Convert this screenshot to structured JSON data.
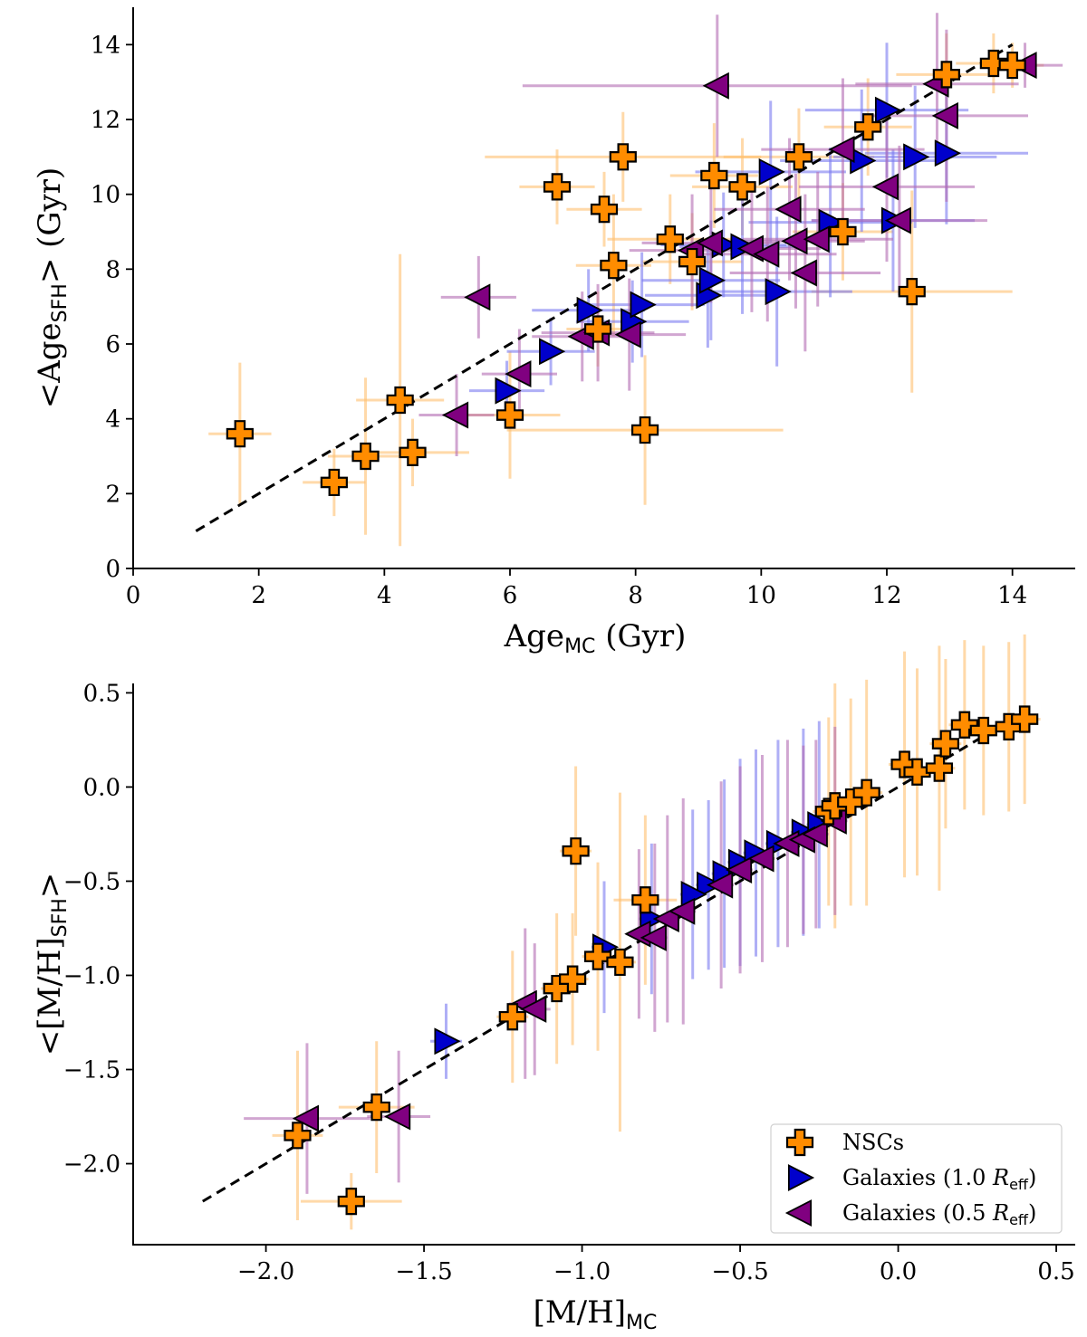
{
  "colors": {
    "nsc": "#ff8c00",
    "gal10": "#0000cc",
    "gal05": "#800080",
    "nsc_err": "#ffbf70",
    "gal10_err": "#7a7af0",
    "gal05_err": "#b36bb3"
  },
  "chart_data": [
    {
      "type": "scatter",
      "xlabel_main": "Age",
      "xlabel_sub": "MC",
      "xlabel_unit": " (Gyr)",
      "ylabel_pre": "<Age",
      "ylabel_sub": "SFH",
      "ylabel_post": "> (Gyr)",
      "xlim": [
        0,
        15
      ],
      "ylim": [
        0,
        15
      ],
      "xticks": [
        0,
        2,
        4,
        6,
        8,
        10,
        12,
        14
      ],
      "yticks": [
        0,
        2,
        4,
        6,
        8,
        10,
        12,
        14
      ],
      "xtick_labels": [
        "0",
        "2",
        "4",
        "6",
        "8",
        "10",
        "12",
        "14"
      ],
      "ytick_labels": [
        "0",
        "2",
        "4",
        "6",
        "8",
        "10",
        "12",
        "14"
      ],
      "one_to_one": [
        1,
        14
      ],
      "series": [
        {
          "name": "NSCs",
          "marker": "plus",
          "points": [
            [
              1.7,
              3.6,
              0.5,
              1.9
            ],
            [
              3.2,
              2.3,
              0.5,
              0.9
            ],
            [
              3.7,
              3.0,
              0.6,
              2.1
            ],
            [
              4.25,
              4.5,
              0.7,
              3.9
            ],
            [
              4.45,
              3.1,
              0.9,
              0.9
            ],
            [
              6.0,
              4.1,
              0.8,
              1.7
            ],
            [
              6.75,
              10.2,
              0.6,
              1.0
            ],
            [
              7.4,
              6.4,
              0.5,
              1.0
            ],
            [
              7.5,
              9.6,
              0.6,
              1.0
            ],
            [
              7.65,
              8.1,
              0.6,
              1.9
            ],
            [
              7.8,
              11.0,
              2.2,
              1.2
            ],
            [
              8.15,
              3.7,
              2.2,
              2.0
            ],
            [
              8.55,
              8.8,
              1.0,
              1.2
            ],
            [
              8.9,
              8.2,
              0.8,
              1.3
            ],
            [
              9.25,
              10.5,
              0.7,
              1.4
            ],
            [
              9.7,
              10.2,
              0.8,
              1.3
            ],
            [
              10.6,
              11.0,
              1.2,
              1.3
            ],
            [
              11.3,
              9.0,
              0.8,
              1.3
            ],
            [
              11.7,
              11.8,
              0.7,
              1.3
            ],
            [
              12.4,
              7.4,
              1.6,
              2.7
            ],
            [
              12.95,
              13.2,
              0.8,
              1.1
            ],
            [
              13.7,
              13.5,
              0.6,
              0.8
            ],
            [
              14.0,
              13.45,
              0.5,
              0.6
            ]
          ]
        },
        {
          "name": "Galaxies (1.0 R_eff)",
          "marker": "tri-right",
          "points": [
            [
              5.95,
              4.75,
              0.6,
              0.8
            ],
            [
              6.65,
              5.8,
              0.7,
              0.9
            ],
            [
              7.25,
              6.9,
              0.9,
              1.1
            ],
            [
              7.95,
              6.6,
              0.9,
              1.1
            ],
            [
              8.1,
              7.05,
              1.0,
              1.4
            ],
            [
              9.15,
              7.3,
              1.0,
              1.4
            ],
            [
              9.2,
              7.7,
              1.1,
              1.6
            ],
            [
              9.4,
              8.65,
              1.0,
              1.4
            ],
            [
              9.7,
              8.6,
              1.0,
              1.8
            ],
            [
              10.15,
              10.6,
              1.2,
              1.9
            ],
            [
              10.25,
              7.4,
              1.2,
              2.0
            ],
            [
              11.1,
              9.25,
              1.3,
              2.0
            ],
            [
              11.6,
              10.9,
              1.3,
              1.9
            ],
            [
              12.0,
              12.25,
              1.3,
              1.8
            ],
            [
              12.1,
              9.3,
              1.3,
              1.9
            ],
            [
              12.45,
              11.0,
              1.3,
              1.9
            ],
            [
              12.95,
              11.1,
              1.3,
              1.9
            ]
          ]
        },
        {
          "name": "Galaxies (0.5 R_eff)",
          "marker": "tri-left",
          "points": [
            [
              5.15,
              4.1,
              0.6,
              1.1
            ],
            [
              5.5,
              7.25,
              0.6,
              1.1
            ],
            [
              6.15,
              5.2,
              0.6,
              1.2
            ],
            [
              7.15,
              6.2,
              0.8,
              1.2
            ],
            [
              7.4,
              6.3,
              0.9,
              1.3
            ],
            [
              7.9,
              6.25,
              0.9,
              1.5
            ],
            [
              8.9,
              8.5,
              1.0,
              1.5
            ],
            [
              9.2,
              8.7,
              1.1,
              1.6
            ],
            [
              9.85,
              8.55,
              1.1,
              1.7
            ],
            [
              10.1,
              8.4,
              1.1,
              1.8
            ],
            [
              10.45,
              9.6,
              1.2,
              1.9
            ],
            [
              10.55,
              8.75,
              1.1,
              1.8
            ],
            [
              10.7,
              7.9,
              1.2,
              2.1
            ],
            [
              10.9,
              8.8,
              1.2,
              1.8
            ],
            [
              11.3,
              11.2,
              1.3,
              1.9
            ],
            [
              12.0,
              10.2,
              1.4,
              2.0
            ],
            [
              12.2,
              9.3,
              1.4,
              2.0
            ],
            [
              12.95,
              12.1,
              1.3,
              2.3
            ],
            [
              12.8,
              12.95,
              1.3,
              1.9
            ],
            [
              9.3,
              12.9,
              3.1,
              1.9
            ],
            [
              14.2,
              13.45,
              0.6,
              0.6
            ]
          ]
        }
      ]
    },
    {
      "type": "scatter",
      "xlabel_main": "[M/H]",
      "xlabel_sub": "MC",
      "xlabel_unit": "",
      "ylabel_pre": "<[M/H]",
      "ylabel_sub": "SFH",
      "ylabel_post": ">",
      "xlim": [
        -2.42,
        0.56
      ],
      "ylim": [
        -2.43,
        0.55
      ],
      "xticks": [
        -2.0,
        -1.5,
        -1.0,
        -0.5,
        0.0,
        0.5
      ],
      "yticks": [
        -2.0,
        -1.5,
        -1.0,
        -0.5,
        0.0,
        0.5
      ],
      "xtick_labels": [
        "−2.0",
        "−1.5",
        "−1.0",
        "−0.5",
        "0.0",
        "0.5"
      ],
      "ytick_labels": [
        "−2.0",
        "−1.5",
        "−1.0",
        "−0.5",
        "0.0",
        "0.5"
      ],
      "one_to_one": [
        -2.2,
        0.4
      ],
      "series": [
        {
          "name": "NSCs",
          "marker": "plus",
          "points": [
            [
              -1.9,
              -1.85,
              0.08,
              0.45
            ],
            [
              -1.73,
              -2.2,
              0.16,
              0.15
            ],
            [
              -1.65,
              -1.7,
              0.12,
              0.35
            ],
            [
              -1.22,
              -1.22,
              0.05,
              0.35
            ],
            [
              -1.08,
              -1.07,
              0.05,
              0.4
            ],
            [
              -1.03,
              -1.02,
              0.05,
              0.35
            ],
            [
              -1.02,
              -0.34,
              0.05,
              0.45
            ],
            [
              -0.95,
              -0.9,
              0.05,
              0.5
            ],
            [
              -0.88,
              -0.93,
              0.05,
              0.9
            ],
            [
              -0.8,
              -0.6,
              0.1,
              0.45
            ],
            [
              -0.22,
              -0.13,
              0.05,
              0.5
            ],
            [
              -0.2,
              -0.1,
              0.05,
              0.65
            ],
            [
              -0.15,
              -0.08,
              0.05,
              0.55
            ],
            [
              -0.1,
              -0.03,
              0.05,
              0.6
            ],
            [
              0.02,
              0.12,
              0.05,
              0.6
            ],
            [
              0.06,
              0.08,
              0.05,
              0.55
            ],
            [
              0.13,
              0.1,
              0.05,
              0.65
            ],
            [
              0.15,
              0.23,
              0.05,
              0.45
            ],
            [
              0.21,
              0.33,
              0.05,
              0.45
            ],
            [
              0.27,
              0.3,
              0.05,
              0.45
            ],
            [
              0.35,
              0.32,
              0.05,
              0.45
            ],
            [
              0.4,
              0.36,
              0.05,
              0.45
            ]
          ]
        },
        {
          "name": "Galaxies (1.0 R_eff)",
          "marker": "tri-right",
          "points": [
            [
              -1.43,
              -1.35,
              0.05,
              0.2
            ],
            [
              -0.93,
              -0.85,
              0.04,
              0.35
            ],
            [
              -0.78,
              -0.7,
              0.04,
              0.4
            ],
            [
              -0.6,
              -0.52,
              0.04,
              0.45
            ],
            [
              -0.55,
              -0.46,
              0.04,
              0.5
            ],
            [
              -0.5,
              -0.4,
              0.04,
              0.55
            ],
            [
              -0.45,
              -0.35,
              0.04,
              0.55
            ],
            [
              -0.38,
              -0.3,
              0.04,
              0.55
            ],
            [
              -0.3,
              -0.24,
              0.04,
              0.55
            ],
            [
              -0.25,
              -0.2,
              0.04,
              0.55
            ],
            [
              -0.65,
              -0.57,
              0.04,
              0.45
            ]
          ]
        },
        {
          "name": "Galaxies (0.5 R_eff)",
          "marker": "tri-left",
          "points": [
            [
              -1.87,
              -1.76,
              0.2,
              0.4
            ],
            [
              -1.58,
              -1.75,
              0.1,
              0.35
            ],
            [
              -1.18,
              -1.15,
              0.05,
              0.4
            ],
            [
              -1.15,
              -1.18,
              0.05,
              0.35
            ],
            [
              -0.82,
              -0.78,
              0.04,
              0.45
            ],
            [
              -0.77,
              -0.8,
              0.04,
              0.5
            ],
            [
              -0.73,
              -0.7,
              0.04,
              0.55
            ],
            [
              -0.68,
              -0.66,
              0.04,
              0.6
            ],
            [
              -0.56,
              -0.52,
              0.04,
              0.55
            ],
            [
              -0.5,
              -0.44,
              0.04,
              0.55
            ],
            [
              -0.43,
              -0.38,
              0.04,
              0.55
            ],
            [
              -0.35,
              -0.3,
              0.04,
              0.55
            ],
            [
              -0.3,
              -0.28,
              0.04,
              0.5
            ],
            [
              -0.26,
              -0.25,
              0.04,
              0.5
            ],
            [
              -0.2,
              -0.18,
              0.04,
              0.5
            ]
          ]
        }
      ]
    }
  ],
  "legend": [
    {
      "label": "NSCs",
      "marker": "plus"
    },
    {
      "label_pre": "Galaxies (1.0 ",
      "label_r": "R",
      "label_sub": "eff",
      "label_post": ")",
      "marker": "tri-right"
    },
    {
      "label_pre": "Galaxies (0.5 ",
      "label_r": "R",
      "label_sub": "eff",
      "label_post": ")",
      "marker": "tri-left"
    }
  ]
}
